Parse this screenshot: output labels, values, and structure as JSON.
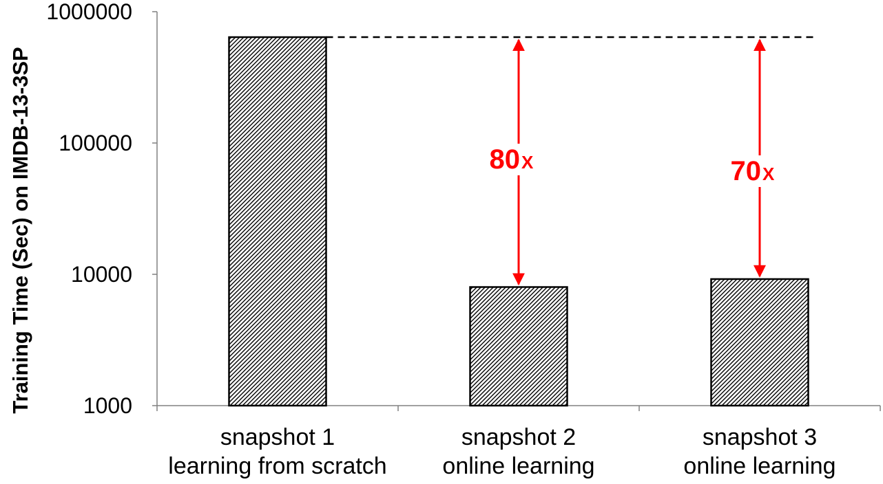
{
  "chart_data": {
    "type": "bar",
    "ylabel": "Training Time (Sec) on IMDB-13-3SP",
    "xlabel": "",
    "yscale": "log",
    "ylim": [
      1000,
      1000000
    ],
    "yticks": [
      "1000",
      "10000",
      "100000",
      "1000000"
    ],
    "categories": [
      {
        "line1": "snapshot 1",
        "line2": "learning from scratch"
      },
      {
        "line1": "snapshot 2",
        "line2": "online learning"
      },
      {
        "line1": "snapshot 3",
        "line2": "online learning"
      }
    ],
    "values": [
      640000,
      8000,
      9200
    ],
    "bar_pattern": "diagonal-hatch",
    "grid": false,
    "reference_line": {
      "value": 640000,
      "style": "dashed"
    },
    "annotations": [
      {
        "category_index": 1,
        "number": "80",
        "suffix": "X",
        "from": 8000,
        "to": 640000
      },
      {
        "category_index": 2,
        "number": "70",
        "suffix": "X",
        "from": 9200,
        "to": 640000
      }
    ],
    "colors": {
      "bar_stroke": "#000000",
      "hatch": "#000000",
      "annotation": "#ff0000",
      "axis": "#808080"
    }
  }
}
